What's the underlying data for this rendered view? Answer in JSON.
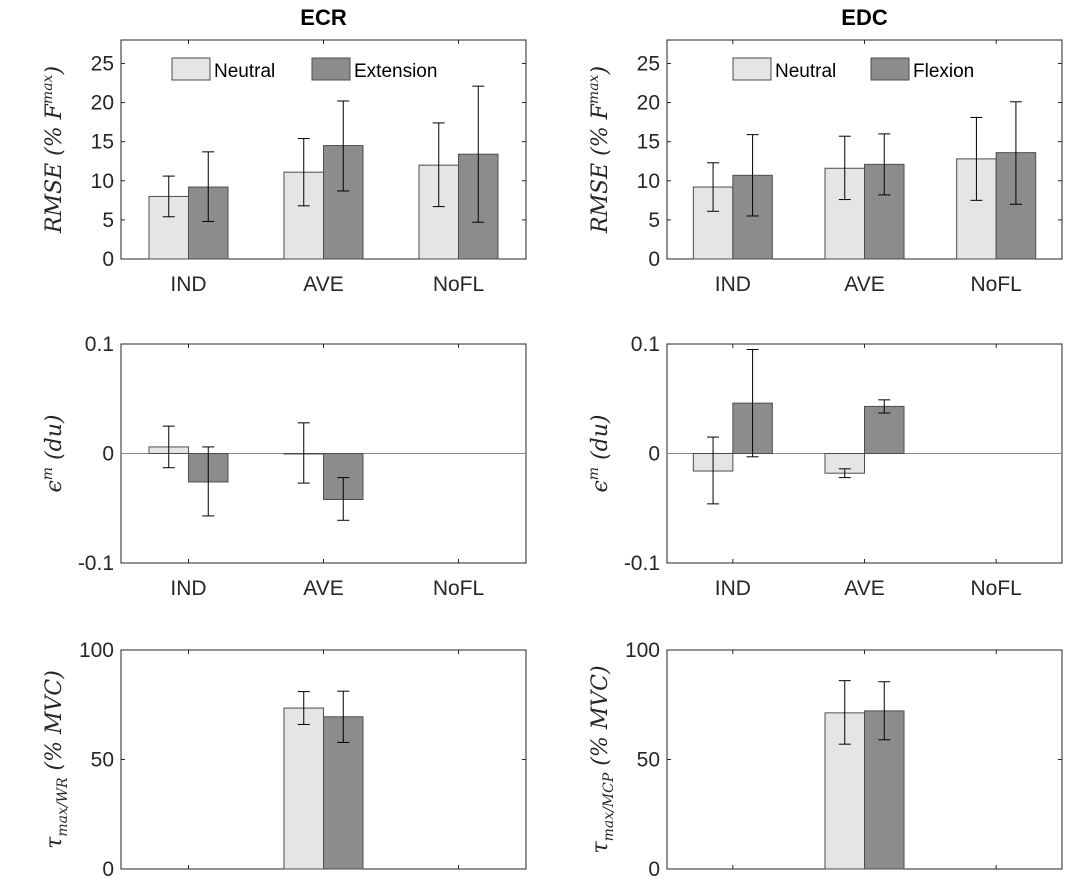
{
  "colors": {
    "neutral": "#e5e5e5",
    "other": "#8c8c8c",
    "axis": "#262626",
    "errorbar": "#000000"
  },
  "chart_data": [
    {
      "type": "bar",
      "title": "ECR",
      "ylabel": "RMSE (% F^max)",
      "ylabel_parts": [
        "RMSE (% F",
        "max",
        ")"
      ],
      "categories": [
        "IND",
        "AVE",
        "NoFL"
      ],
      "ylim": [
        0,
        28
      ],
      "yticks": [
        0,
        5,
        10,
        15,
        20,
        25
      ],
      "ytick_labels": [
        "0",
        "5",
        "10",
        "15",
        "20",
        "25"
      ],
      "legend": [
        "Neutral",
        "Extension"
      ],
      "legend_placement": "top-center",
      "grid": false,
      "series": [
        {
          "name": "Neutral",
          "values": [
            8.0,
            11.1,
            12.0
          ],
          "err_low": [
            5.4,
            6.8,
            6.7
          ],
          "err_high": [
            10.6,
            15.4,
            17.4
          ]
        },
        {
          "name": "Extension",
          "values": [
            9.2,
            14.5,
            13.4
          ],
          "err_low": [
            4.8,
            8.7,
            4.7
          ],
          "err_high": [
            13.7,
            20.2,
            22.1
          ]
        }
      ]
    },
    {
      "type": "bar",
      "title": "EDC",
      "ylabel": "RMSE (% F^max)",
      "ylabel_parts": [
        "RMSE (% F",
        "max",
        ")"
      ],
      "categories": [
        "IND",
        "AVE",
        "NoFL"
      ],
      "ylim": [
        0,
        28
      ],
      "yticks": [
        0,
        5,
        10,
        15,
        20,
        25
      ],
      "ytick_labels": [
        "0",
        "5",
        "10",
        "15",
        "20",
        "25"
      ],
      "legend": [
        "Neutral",
        "Flexion"
      ],
      "legend_placement": "top-center",
      "grid": false,
      "series": [
        {
          "name": "Neutral",
          "values": [
            9.2,
            11.6,
            12.8
          ],
          "err_low": [
            6.1,
            7.6,
            7.5
          ],
          "err_high": [
            12.3,
            15.7,
            18.1
          ]
        },
        {
          "name": "Flexion",
          "values": [
            10.7,
            12.1,
            13.6
          ],
          "err_low": [
            5.5,
            8.2,
            7.0
          ],
          "err_high": [
            15.9,
            16.0,
            20.1
          ]
        }
      ]
    },
    {
      "type": "bar",
      "title": "",
      "ylabel": "ε^m (du)",
      "ylabel_parts": [
        "ϵ",
        "m",
        " (du)"
      ],
      "categories": [
        "IND",
        "AVE",
        "NoFL"
      ],
      "ylim": [
        -0.1,
        0.1
      ],
      "yticks": [
        -0.1,
        0,
        0.1
      ],
      "ytick_labels": [
        "-0.1",
        "0",
        "0.1"
      ],
      "zero_line": true,
      "grid": false,
      "series": [
        {
          "name": "Neutral",
          "values": [
            0.006,
            0.0,
            null
          ],
          "err_low": [
            -0.013,
            -0.027,
            null
          ],
          "err_high": [
            0.025,
            0.028,
            null
          ]
        },
        {
          "name": "Extension",
          "values": [
            -0.026,
            -0.042,
            null
          ],
          "err_low": [
            -0.057,
            -0.061,
            null
          ],
          "err_high": [
            0.006,
            -0.022,
            null
          ]
        }
      ]
    },
    {
      "type": "bar",
      "title": "",
      "ylabel": "ε^m (du)",
      "ylabel_parts": [
        "ϵ",
        "m",
        " (du)"
      ],
      "categories": [
        "IND",
        "AVE",
        "NoFL"
      ],
      "ylim": [
        -0.1,
        0.1
      ],
      "yticks": [
        -0.1,
        0,
        0.1
      ],
      "ytick_labels": [
        "-0.1",
        "0",
        "0.1"
      ],
      "zero_line": true,
      "grid": false,
      "series": [
        {
          "name": "Neutral",
          "values": [
            -0.016,
            -0.018,
            null
          ],
          "err_low": [
            -0.046,
            -0.022,
            null
          ],
          "err_high": [
            0.015,
            -0.014,
            null
          ]
        },
        {
          "name": "Flexion",
          "values": [
            0.046,
            0.043,
            null
          ],
          "err_low": [
            -0.003,
            0.037,
            null
          ],
          "err_high": [
            0.095,
            0.049,
            null
          ]
        }
      ]
    },
    {
      "type": "bar",
      "title": "",
      "ylabel": "τ_max/WR (% MVC)",
      "ylabel_parts": [
        "τ",
        "max/WR",
        " (% MVC)"
      ],
      "categories": [
        "",
        "",
        ""
      ],
      "ylim": [
        0,
        100
      ],
      "yticks": [
        0,
        50,
        100
      ],
      "ytick_labels": [
        "0",
        "50",
        "100"
      ],
      "grid": false,
      "series": [
        {
          "name": "Neutral",
          "values": [
            null,
            73.5,
            null
          ],
          "err_low": [
            null,
            66.0,
            null
          ],
          "err_high": [
            null,
            81.0,
            null
          ]
        },
        {
          "name": "Extension",
          "values": [
            null,
            69.5,
            null
          ],
          "err_low": [
            null,
            57.8,
            null
          ],
          "err_high": [
            null,
            81.2,
            null
          ]
        }
      ]
    },
    {
      "type": "bar",
      "title": "",
      "ylabel": "τ_max/MCP (% MVC)",
      "ylabel_parts": [
        "τ",
        "max/MCP",
        " (% MVC)"
      ],
      "categories": [
        "",
        "",
        ""
      ],
      "ylim": [
        0,
        100
      ],
      "yticks": [
        0,
        50,
        100
      ],
      "ytick_labels": [
        "0",
        "50",
        "100"
      ],
      "grid": false,
      "series": [
        {
          "name": "Neutral",
          "values": [
            null,
            71.3,
            null
          ],
          "err_low": [
            null,
            57.0,
            null
          ],
          "err_high": [
            null,
            86.0,
            null
          ]
        },
        {
          "name": "Flexion",
          "values": [
            null,
            72.2,
            null
          ],
          "err_low": [
            null,
            59.0,
            null
          ],
          "err_high": [
            null,
            85.5,
            null
          ]
        }
      ]
    }
  ]
}
